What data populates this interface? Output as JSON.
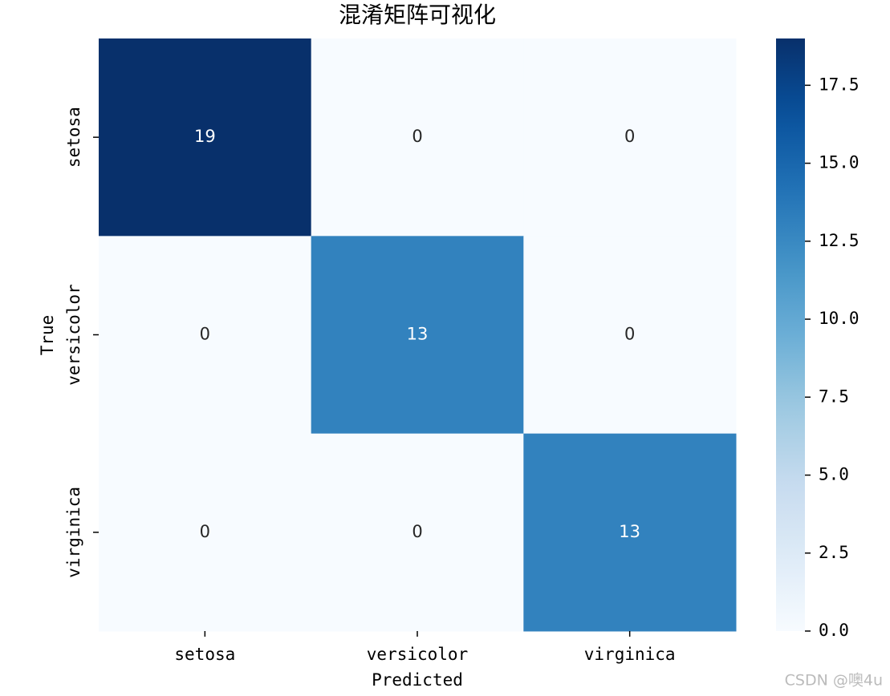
{
  "chart_data": {
    "type": "heatmap",
    "title": "混淆矩阵可视化",
    "x_label": "Predicted",
    "y_label": "True",
    "x_categories": [
      "setosa",
      "versicolor",
      "virginica"
    ],
    "y_categories": [
      "setosa",
      "versicolor",
      "virginica"
    ],
    "values": [
      [
        19,
        0,
        0
      ],
      [
        0,
        13,
        0
      ],
      [
        0,
        0,
        13
      ]
    ],
    "colormap": [
      "#f7fbff",
      "#deebf7",
      "#c6dbef",
      "#9ecae1",
      "#6baed6",
      "#4292c6",
      "#2171b5",
      "#08519c",
      "#08306b"
    ],
    "clim": [
      0,
      19
    ],
    "cticks": [
      {
        "value": 0,
        "label": "0.0"
      },
      2.5,
      {
        "value": 5,
        "label": "5.0"
      },
      7.5,
      {
        "value": 10,
        "label": "10.0"
      },
      12.5,
      {
        "value": 15,
        "label": "15.0"
      },
      17.5
    ],
    "watermark": "CSDN @噢4u"
  }
}
